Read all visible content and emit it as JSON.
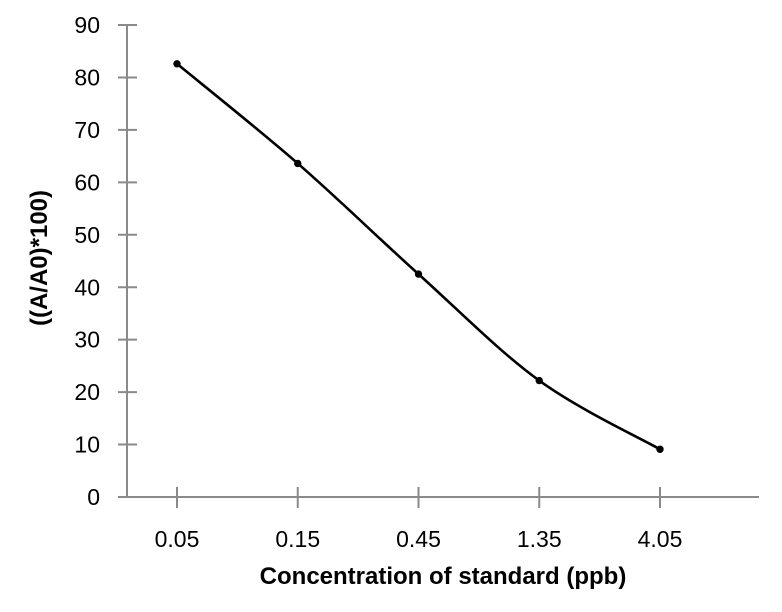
{
  "chart_data": {
    "type": "line",
    "title": "",
    "xlabel": "Concentration of standard (ppb)",
    "ylabel": "((A/A0)*100)",
    "categories": [
      "0.05",
      "0.15",
      "0.45",
      "1.35",
      "4.05"
    ],
    "values": [
      82.6,
      63.6,
      42.5,
      22.2,
      9.1
    ],
    "y_ticks": [
      0,
      10,
      20,
      30,
      40,
      50,
      60,
      70,
      80,
      90
    ],
    "ylim": [
      0,
      90
    ],
    "grid": false,
    "legend": false,
    "smooth_line": true,
    "marker_style": "filled-circle",
    "colors": {
      "line": "#000000",
      "marker": "#000000",
      "axis": "#8a8a8a",
      "text": "#000000",
      "background": "#ffffff"
    }
  }
}
